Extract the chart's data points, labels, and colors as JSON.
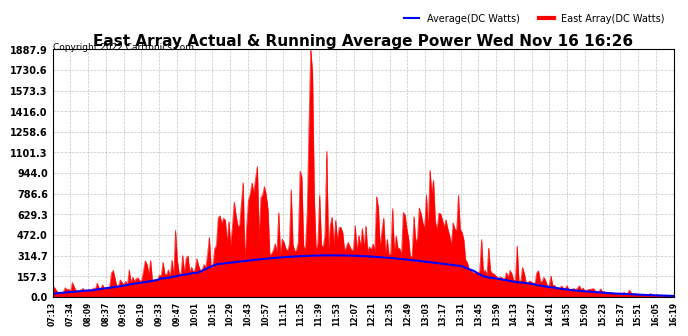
{
  "title": "East Array Actual & Running Average Power Wed Nov 16 16:26",
  "copyright": "Copyright 2022 Cartronics.com",
  "legend_avg": "Average(DC Watts)",
  "legend_east": "East Array(DC Watts)",
  "yticks": [
    0.0,
    157.3,
    314.7,
    472.0,
    629.3,
    786.6,
    944.0,
    1101.3,
    1258.6,
    1416.0,
    1573.3,
    1730.6,
    1887.9
  ],
  "ylim": [
    0,
    1887.9
  ],
  "bg_color": "#ffffff",
  "grid_color": "#aaaaaa",
  "fill_color": "#ff0000",
  "avg_color": "#0000ff",
  "title_color": "#000000",
  "copyright_color": "#000000",
  "xtick_labels": [
    "07:13",
    "07:34",
    "08:09",
    "08:37",
    "09:03",
    "09:19",
    "09:33",
    "09:47",
    "10:01",
    "10:15",
    "10:29",
    "10:43",
    "10:57",
    "11:11",
    "11:25",
    "11:39",
    "11:53",
    "12:07",
    "12:21",
    "12:35",
    "12:49",
    "13:03",
    "13:17",
    "13:31",
    "13:45",
    "13:59",
    "14:13",
    "14:27",
    "14:41",
    "14:55",
    "15:09",
    "15:23",
    "15:37",
    "15:51",
    "16:05",
    "16:19"
  ],
  "n_points": 350
}
